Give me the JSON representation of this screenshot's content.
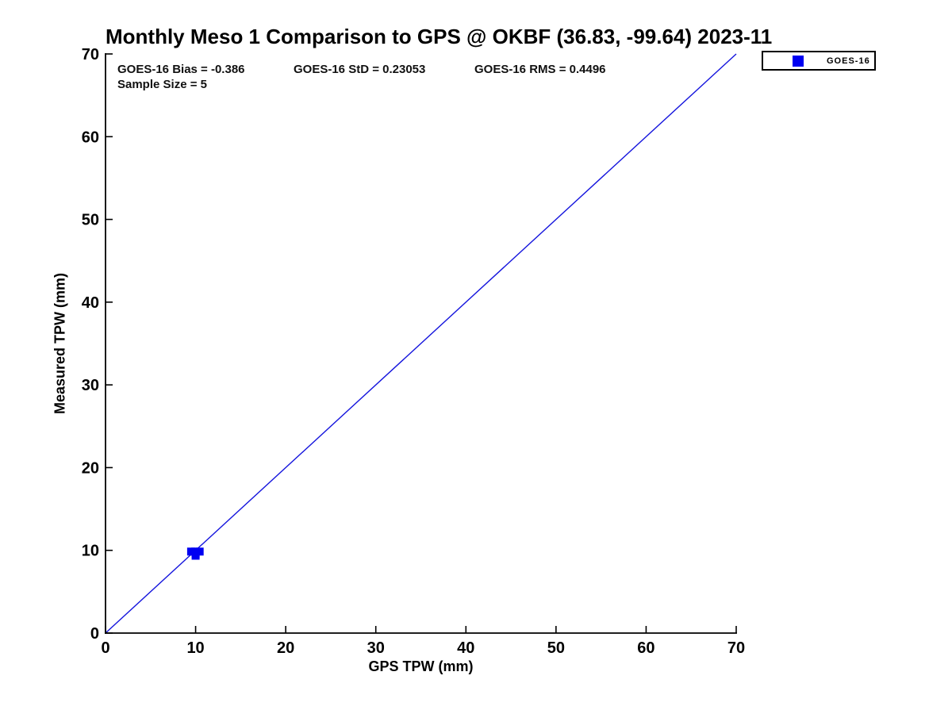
{
  "title": "Monthly Meso 1 Comparison to GPS @ OKBF (36.83, -99.64) 2023-11",
  "stats": {
    "bias_label": "GOES-16 Bias = -0.386",
    "std_label": "GOES-16 StD = 0.23053",
    "rms_label": "GOES-16 RMS = 0.4496",
    "sample_size_label": "Sample Size = 5"
  },
  "legend": {
    "entries": [
      {
        "label": "GOES-16",
        "marker": "square",
        "color": "#0000f2"
      }
    ],
    "position": "top-right-outside"
  },
  "chart_data": {
    "type": "scatter",
    "title": "Monthly Meso 1 Comparison to GPS @ OKBF (36.83, -99.64) 2023-11",
    "xlabel": "GPS TPW (mm)",
    "ylabel": "Measured TPW (mm)",
    "xlim": [
      0,
      70
    ],
    "ylim": [
      0,
      70
    ],
    "xticks": [
      0,
      10,
      20,
      30,
      40,
      50,
      60,
      70
    ],
    "yticks": [
      0,
      10,
      20,
      30,
      40,
      50,
      60,
      70
    ],
    "grid": false,
    "legend_position": "top-right-outside",
    "series": [
      {
        "name": "GOES-16",
        "marker": "square",
        "color": "#0000f2",
        "points": [
          [
            9.5,
            9.85
          ],
          [
            9.95,
            9.85
          ],
          [
            10.45,
            9.85
          ],
          [
            10.0,
            9.55
          ],
          [
            10.0,
            9.35
          ]
        ]
      }
    ],
    "reference_line": {
      "label": "1:1 line",
      "from": [
        0,
        0
      ],
      "to": [
        70,
        70
      ],
      "color": "#1414dd"
    },
    "annotations": {
      "bias": -0.386,
      "std": 0.23053,
      "rms": 0.4496,
      "sample_size": 5
    },
    "colors": {
      "axis": "#000000",
      "text": "#000000",
      "background": "#ffffff"
    }
  }
}
